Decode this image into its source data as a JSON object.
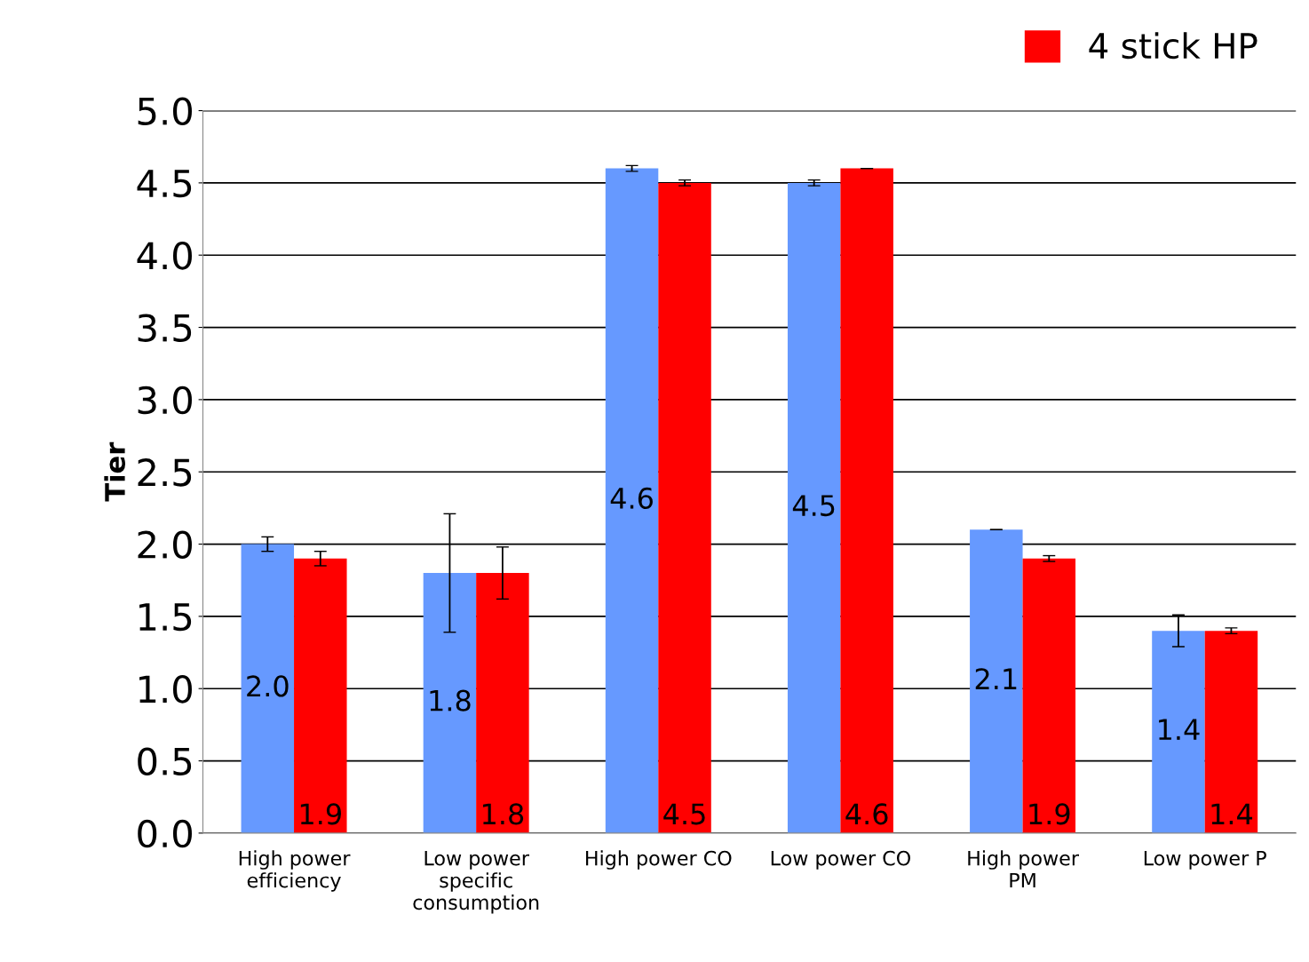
{
  "chart_data": {
    "type": "bar",
    "ylabel": "Tier",
    "categories": [
      "High power\nefficiency",
      "Low power\nspecific\nconsumption",
      "High power CO",
      "Low power CO",
      "High power\nPM",
      "Low power P"
    ],
    "series": [
      {
        "color": "#6699ff",
        "values": [
          2.0,
          1.8,
          4.6,
          4.5,
          2.1,
          1.4
        ],
        "value_labels": [
          "2.0",
          "1.8",
          "4.6",
          "4.5",
          "2.1",
          "1.4"
        ],
        "errors": [
          0.05,
          0.41,
          0.02,
          0.02,
          0,
          0.11
        ]
      },
      {
        "name": "4 stick HP",
        "color": "#ff0000",
        "values": [
          1.9,
          1.8,
          4.5,
          4.6,
          1.9,
          1.4
        ],
        "value_labels": [
          "1.9",
          "1.8",
          "4.5",
          "4.6",
          "1.9",
          "1.4"
        ],
        "errors": [
          0.05,
          0.18,
          0.02,
          0,
          0.02,
          0.02
        ]
      }
    ],
    "ylim": [
      0,
      5
    ],
    "yticks": [
      {
        "value": 0,
        "label": "0.0"
      },
      {
        "value": 0.5,
        "label": "0.5"
      },
      {
        "value": 1,
        "label": "1.0"
      },
      {
        "value": 1.5,
        "label": "1.5"
      },
      {
        "value": 2,
        "label": "2.0"
      },
      {
        "value": 2.5,
        "label": "2.5"
      },
      {
        "value": 3,
        "label": "3.0"
      },
      {
        "value": 3.5,
        "label": "3.5"
      },
      {
        "value": 4,
        "label": "4.0"
      },
      {
        "value": 4.5,
        "label": "4.5"
      },
      {
        "value": 5,
        "label": "5.0"
      }
    ],
    "grid": "y",
    "legend": "top right"
  }
}
